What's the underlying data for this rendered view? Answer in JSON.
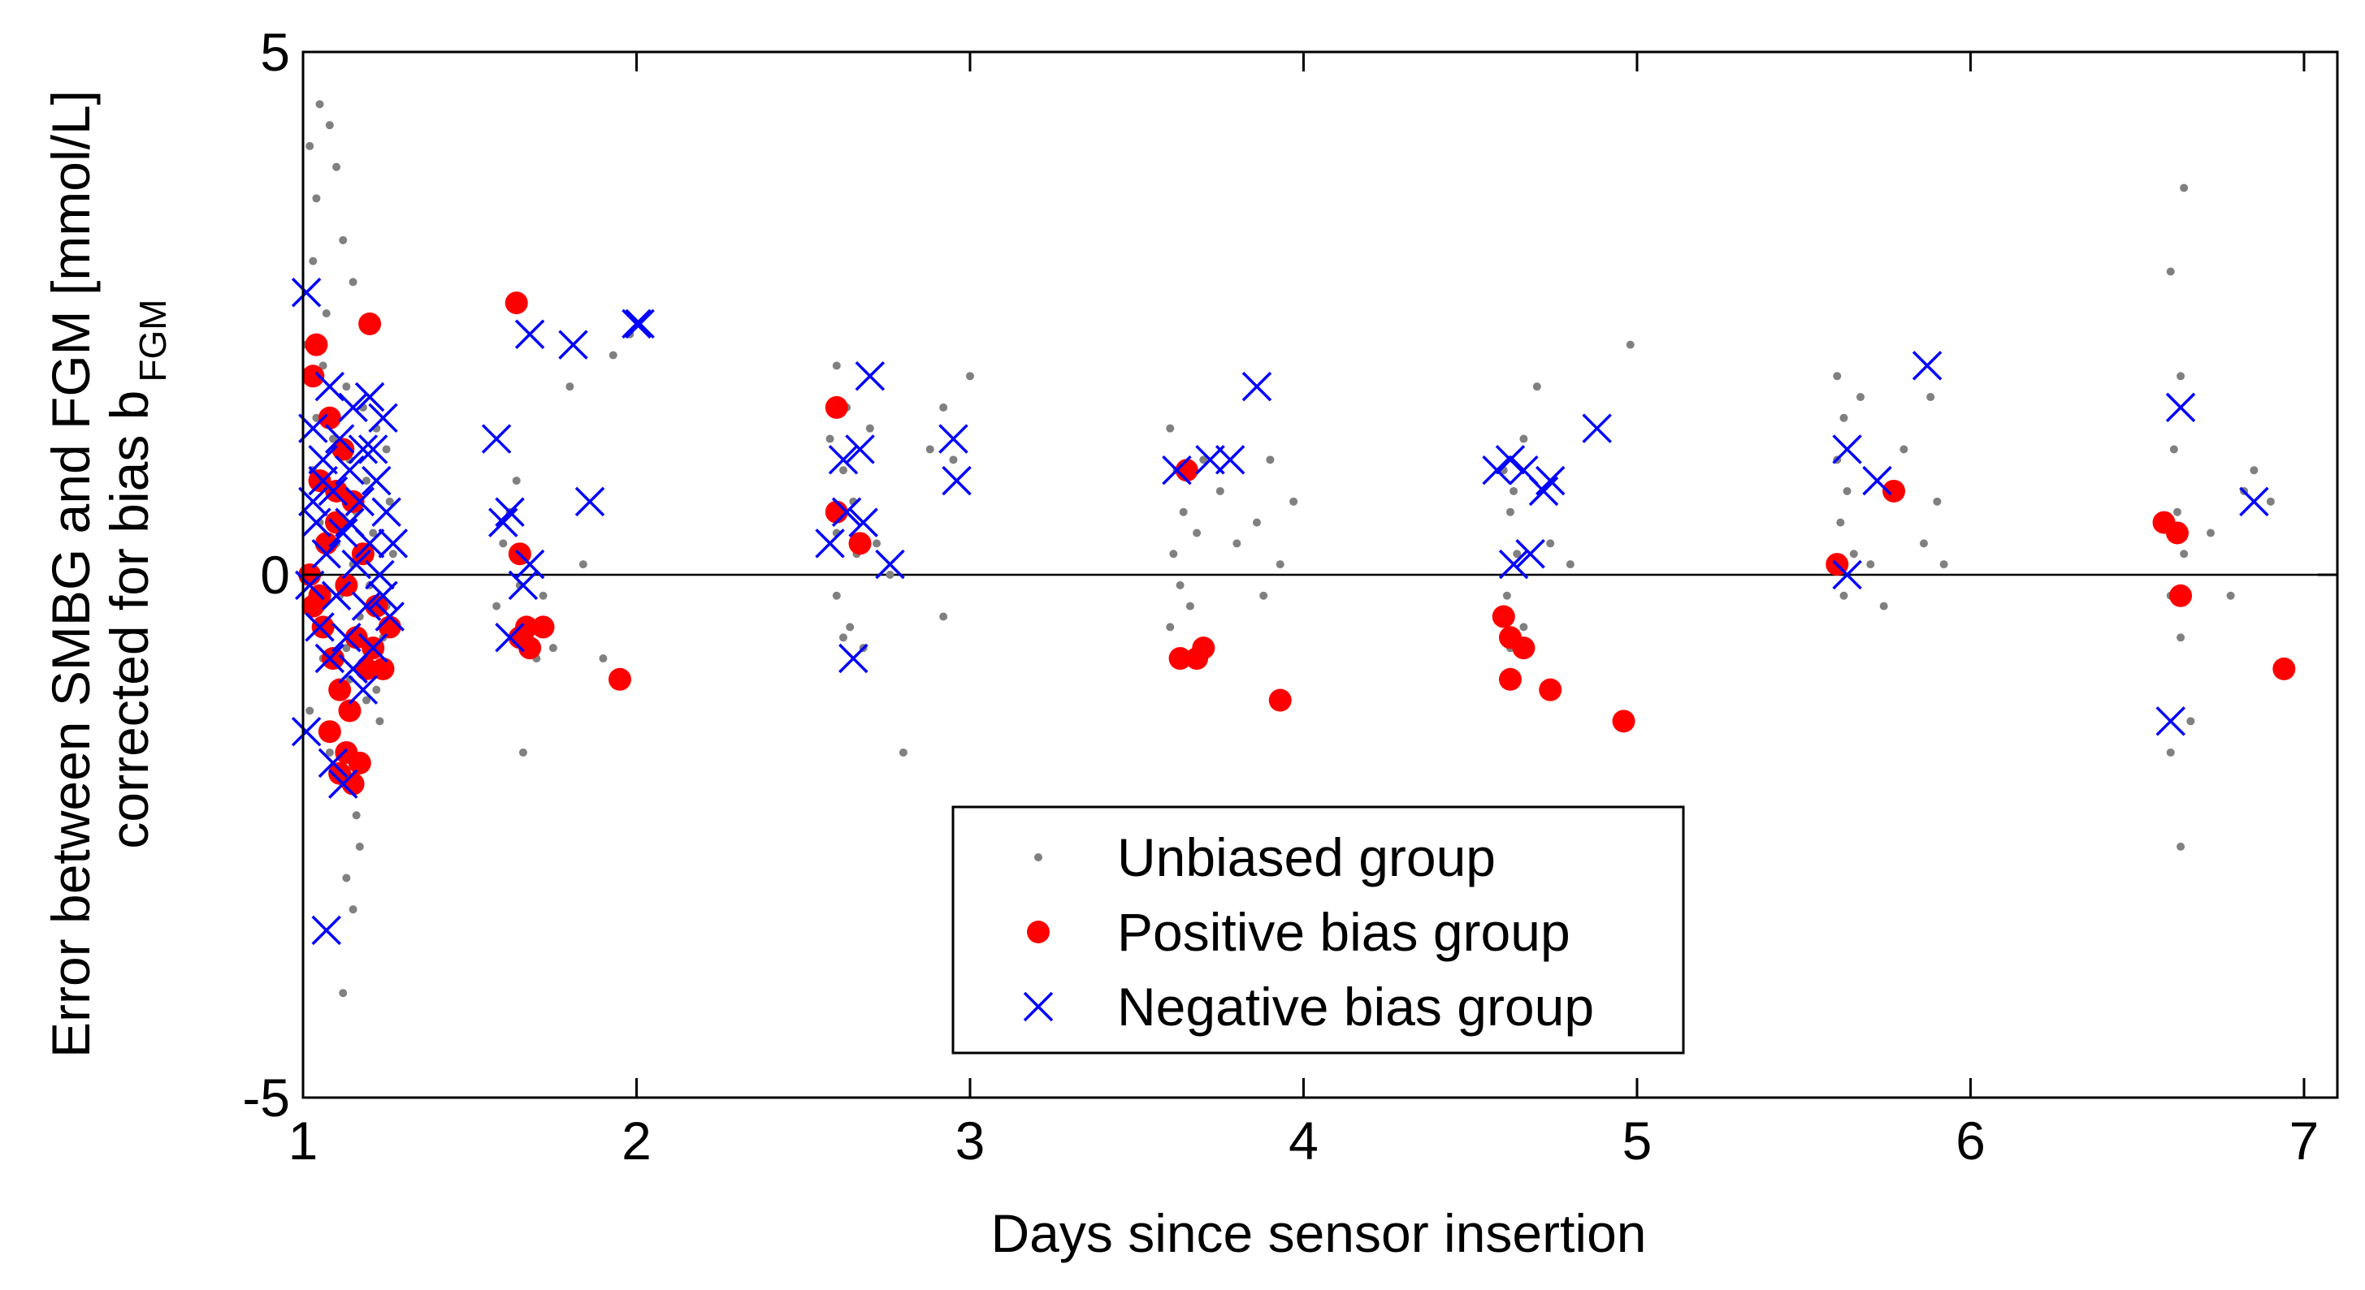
{
  "chart_data": {
    "type": "scatter",
    "title": "",
    "xlabel": "Days since sensor insertion",
    "ylabel_line1": "Error between SMBG and FGM [mmol/L]",
    "ylabel_line2_main": "corrected for bias b",
    "ylabel_line2_sub": "FGM",
    "xlim": [
      1,
      7.1
    ],
    "ylim": [
      -5,
      5
    ],
    "x_ticks": [
      1,
      2,
      3,
      4,
      5,
      6,
      7
    ],
    "x_tick_labels": [
      "1",
      "2",
      "3",
      "4",
      "5",
      "6",
      "7"
    ],
    "y_ticks": [
      -5,
      0,
      5
    ],
    "y_tick_labels": [
      "-5",
      "0",
      "5"
    ],
    "zero_line": 0,
    "legend_position": "bottom-center",
    "colors": {
      "unbiased": "#808080",
      "positive": "#ff0000",
      "negative": "#0000ff",
      "axis": "#000000"
    },
    "series": [
      {
        "name": "Unbiased group",
        "marker": "dot",
        "points": [
          [
            1.02,
            4.1
          ],
          [
            1.05,
            4.5
          ],
          [
            1.08,
            4.3
          ],
          [
            1.04,
            3.6
          ],
          [
            1.1,
            3.9
          ],
          [
            1.12,
            3.2
          ],
          [
            1.03,
            3.0
          ],
          [
            1.15,
            2.8
          ],
          [
            1.07,
            2.5
          ],
          [
            1.2,
            2.4
          ],
          [
            1.01,
            2.2
          ],
          [
            1.06,
            2.0
          ],
          [
            1.13,
            1.8
          ],
          [
            1.18,
            1.6
          ],
          [
            1.22,
            1.4
          ],
          [
            1.25,
            1.2
          ],
          [
            1.03,
            1.0
          ],
          [
            1.09,
            0.8
          ],
          [
            1.16,
            0.6
          ],
          [
            1.21,
            0.4
          ],
          [
            1.27,
            0.2
          ],
          [
            1.02,
            0.0
          ],
          [
            1.11,
            -0.2
          ],
          [
            1.17,
            -0.4
          ],
          [
            1.24,
            -0.6
          ],
          [
            1.06,
            -0.8
          ],
          [
            1.14,
            -1.0
          ],
          [
            1.19,
            -1.2
          ],
          [
            1.23,
            -1.4
          ],
          [
            1.08,
            -1.7
          ],
          [
            1.12,
            -2.0
          ],
          [
            1.16,
            -2.3
          ],
          [
            1.13,
            -2.9
          ],
          [
            1.15,
            -3.2
          ],
          [
            1.12,
            -4.0
          ],
          [
            1.04,
            1.5
          ],
          [
            1.09,
            1.3
          ],
          [
            1.14,
            1.1
          ],
          [
            1.19,
            0.9
          ],
          [
            1.26,
            0.7
          ],
          [
            1.05,
            0.5
          ],
          [
            1.1,
            0.3
          ],
          [
            1.15,
            0.1
          ],
          [
            1.2,
            -0.1
          ],
          [
            1.25,
            -0.3
          ],
          [
            1.07,
            -0.5
          ],
          [
            1.13,
            -0.7
          ],
          [
            1.18,
            -0.9
          ],
          [
            1.22,
            -1.1
          ],
          [
            1.02,
            -1.3
          ],
          [
            1.17,
            -2.6
          ],
          [
            1.62,
            0.6
          ],
          [
            1.6,
            0.3
          ],
          [
            1.65,
            -0.1
          ],
          [
            1.58,
            -0.3
          ],
          [
            1.68,
            -0.6
          ],
          [
            1.7,
            -0.8
          ],
          [
            1.64,
            0.9
          ],
          [
            1.66,
            -1.7
          ],
          [
            1.72,
            -0.2
          ],
          [
            1.75,
            -0.7
          ],
          [
            1.8,
            1.8
          ],
          [
            1.84,
            0.1
          ],
          [
            1.9,
            -0.8
          ],
          [
            1.93,
            2.1
          ],
          [
            1.98,
            2.3
          ],
          [
            2.6,
            2.0
          ],
          [
            2.63,
            1.6
          ],
          [
            2.58,
            1.3
          ],
          [
            2.62,
            1.0
          ],
          [
            2.65,
            0.7
          ],
          [
            2.6,
            0.4
          ],
          [
            2.66,
            0.2
          ],
          [
            2.6,
            -0.2
          ],
          [
            2.64,
            -0.5
          ],
          [
            2.68,
            -0.7
          ],
          [
            2.72,
            0.3
          ],
          [
            2.7,
            1.4
          ],
          [
            2.76,
            0.0
          ],
          [
            2.8,
            -1.7
          ],
          [
            2.88,
            1.2
          ],
          [
            2.92,
            1.6
          ],
          [
            2.95,
            1.1
          ],
          [
            3.0,
            1.9
          ],
          [
            2.92,
            -0.4
          ],
          [
            2.62,
            -0.6
          ],
          [
            3.6,
            1.4
          ],
          [
            3.62,
            1.0
          ],
          [
            3.64,
            0.6
          ],
          [
            3.61,
            0.2
          ],
          [
            3.63,
            -0.1
          ],
          [
            3.6,
            -0.5
          ],
          [
            3.66,
            -0.3
          ],
          [
            3.68,
            0.4
          ],
          [
            3.7,
            1.1
          ],
          [
            3.75,
            0.8
          ],
          [
            3.8,
            0.3
          ],
          [
            3.86,
            0.5
          ],
          [
            3.9,
            1.1
          ],
          [
            3.93,
            0.1
          ],
          [
            3.97,
            0.7
          ],
          [
            3.88,
            -0.2
          ],
          [
            4.6,
            1.0
          ],
          [
            4.62,
            0.6
          ],
          [
            4.64,
            0.2
          ],
          [
            4.61,
            -0.2
          ],
          [
            4.63,
            0.8
          ],
          [
            4.66,
            1.3
          ],
          [
            4.7,
            1.8
          ],
          [
            4.74,
            0.3
          ],
          [
            4.8,
            0.1
          ],
          [
            4.98,
            2.2
          ],
          [
            4.62,
            -0.7
          ],
          [
            4.66,
            -0.5
          ],
          [
            5.6,
            1.9
          ],
          [
            5.62,
            1.5
          ],
          [
            5.6,
            1.1
          ],
          [
            5.63,
            0.8
          ],
          [
            5.61,
            0.5
          ],
          [
            5.65,
            0.2
          ],
          [
            5.62,
            -0.2
          ],
          [
            5.67,
            1.7
          ],
          [
            5.7,
            0.1
          ],
          [
            5.74,
            -0.3
          ],
          [
            5.8,
            1.2
          ],
          [
            5.86,
            0.3
          ],
          [
            5.9,
            0.7
          ],
          [
            5.92,
            0.1
          ],
          [
            5.88,
            1.7
          ],
          [
            6.6,
            2.9
          ],
          [
            6.64,
            3.7
          ],
          [
            6.63,
            1.9
          ],
          [
            6.61,
            1.2
          ],
          [
            6.62,
            0.6
          ],
          [
            6.64,
            0.2
          ],
          [
            6.6,
            -0.2
          ],
          [
            6.63,
            -0.6
          ],
          [
            6.66,
            -1.4
          ],
          [
            6.6,
            -1.7
          ],
          [
            6.63,
            -2.6
          ],
          [
            6.72,
            0.4
          ],
          [
            6.78,
            -0.2
          ],
          [
            6.82,
            0.8
          ],
          [
            6.85,
            1.0
          ],
          [
            6.9,
            0.7
          ]
        ]
      },
      {
        "name": "Positive bias group",
        "marker": "filled-circle",
        "points": [
          [
            1.04,
            2.2
          ],
          [
            1.2,
            2.4
          ],
          [
            1.03,
            1.9
          ],
          [
            1.08,
            1.5
          ],
          [
            1.12,
            1.2
          ],
          [
            1.05,
            0.9
          ],
          [
            1.15,
            0.7
          ],
          [
            1.1,
            0.5
          ],
          [
            1.07,
            0.3
          ],
          [
            1.18,
            0.2
          ],
          [
            1.02,
            0.0
          ],
          [
            1.13,
            -0.1
          ],
          [
            1.22,
            -0.3
          ],
          [
            1.06,
            -0.5
          ],
          [
            1.16,
            -0.6
          ],
          [
            1.09,
            -0.8
          ],
          [
            1.19,
            -0.9
          ],
          [
            1.11,
            -1.1
          ],
          [
            1.14,
            -1.3
          ],
          [
            1.08,
            -1.5
          ],
          [
            1.13,
            -1.7
          ],
          [
            1.17,
            -1.8
          ],
          [
            1.11,
            -1.9
          ],
          [
            1.15,
            -2.0
          ],
          [
            1.21,
            -0.7
          ],
          [
            1.24,
            -0.9
          ],
          [
            1.26,
            -0.5
          ],
          [
            1.03,
            -0.3
          ],
          [
            1.1,
            0.8
          ],
          [
            1.05,
            -0.2
          ],
          [
            1.64,
            2.6
          ],
          [
            1.65,
            0.2
          ],
          [
            1.65,
            -0.6
          ],
          [
            1.68,
            -0.7
          ],
          [
            1.67,
            -0.5
          ],
          [
            1.72,
            -0.5
          ],
          [
            1.95,
            -1.0
          ],
          [
            2.6,
            1.6
          ],
          [
            2.6,
            0.6
          ],
          [
            2.67,
            0.3
          ],
          [
            3.65,
            1.0
          ],
          [
            3.63,
            -0.8
          ],
          [
            3.68,
            -0.8
          ],
          [
            3.7,
            -0.7
          ],
          [
            3.93,
            -1.2
          ],
          [
            4.6,
            -0.4
          ],
          [
            4.62,
            -0.6
          ],
          [
            4.66,
            -0.7
          ],
          [
            4.62,
            -1.0
          ],
          [
            4.74,
            -1.1
          ],
          [
            4.96,
            -1.4
          ],
          [
            5.6,
            0.1
          ],
          [
            5.77,
            0.8
          ],
          [
            6.58,
            0.5
          ],
          [
            6.62,
            0.4
          ],
          [
            6.63,
            -0.2
          ],
          [
            6.94,
            -0.9
          ]
        ]
      },
      {
        "name": "Negative bias group",
        "marker": "x",
        "points": [
          [
            1.01,
            2.7
          ],
          [
            1.08,
            1.8
          ],
          [
            1.15,
            1.6
          ],
          [
            1.2,
            1.7
          ],
          [
            1.24,
            1.5
          ],
          [
            1.03,
            1.4
          ],
          [
            1.11,
            1.3
          ],
          [
            1.18,
            1.2
          ],
          [
            1.06,
            1.1
          ],
          [
            1.14,
            1.0
          ],
          [
            1.22,
            0.9
          ],
          [
            1.09,
            0.8
          ],
          [
            1.17,
            0.7
          ],
          [
            1.25,
            0.6
          ],
          [
            1.04,
            0.5
          ],
          [
            1.12,
            0.4
          ],
          [
            1.2,
            0.3
          ],
          [
            1.07,
            0.2
          ],
          [
            1.16,
            0.1
          ],
          [
            1.23,
            0.0
          ],
          [
            1.02,
            -0.1
          ],
          [
            1.1,
            -0.2
          ],
          [
            1.19,
            -0.3
          ],
          [
            1.26,
            -0.4
          ],
          [
            1.05,
            -0.5
          ],
          [
            1.13,
            -0.6
          ],
          [
            1.21,
            -0.7
          ],
          [
            1.08,
            -0.8
          ],
          [
            1.15,
            -0.9
          ],
          [
            1.18,
            -1.1
          ],
          [
            1.01,
            -1.5
          ],
          [
            1.09,
            -1.8
          ],
          [
            1.12,
            -2.0
          ],
          [
            1.07,
            -3.4
          ],
          [
            1.27,
            0.3
          ],
          [
            1.14,
            0.5
          ],
          [
            1.06,
            0.9
          ],
          [
            1.21,
            1.2
          ],
          [
            1.03,
            0.7
          ],
          [
            1.24,
            -0.2
          ],
          [
            1.58,
            1.3
          ],
          [
            1.62,
            0.6
          ],
          [
            1.6,
            0.5
          ],
          [
            1.68,
            0.1
          ],
          [
            1.66,
            -0.1
          ],
          [
            1.62,
            -0.6
          ],
          [
            1.68,
            2.3
          ],
          [
            1.81,
            2.2
          ],
          [
            1.86,
            0.7
          ],
          [
            2.0,
            2.4
          ],
          [
            2.01,
            2.4
          ],
          [
            2.58,
            0.3
          ],
          [
            2.62,
            1.1
          ],
          [
            2.67,
            1.2
          ],
          [
            2.7,
            1.9
          ],
          [
            2.63,
            0.6
          ],
          [
            2.68,
            0.5
          ],
          [
            2.65,
            -0.8
          ],
          [
            2.76,
            0.1
          ],
          [
            2.95,
            1.3
          ],
          [
            2.96,
            0.9
          ],
          [
            3.62,
            1.0
          ],
          [
            3.72,
            1.1
          ],
          [
            3.78,
            1.1
          ],
          [
            3.86,
            1.8
          ],
          [
            4.58,
            1.0
          ],
          [
            4.62,
            1.1
          ],
          [
            4.66,
            1.0
          ],
          [
            4.74,
            0.9
          ],
          [
            4.72,
            0.8
          ],
          [
            4.88,
            1.4
          ],
          [
            4.63,
            0.1
          ],
          [
            4.68,
            0.2
          ],
          [
            5.63,
            1.2
          ],
          [
            5.72,
            0.9
          ],
          [
            5.63,
            0.0
          ],
          [
            5.87,
            2.0
          ],
          [
            6.63,
            1.6
          ],
          [
            6.6,
            -1.4
          ],
          [
            6.85,
            0.7
          ]
        ]
      }
    ]
  }
}
